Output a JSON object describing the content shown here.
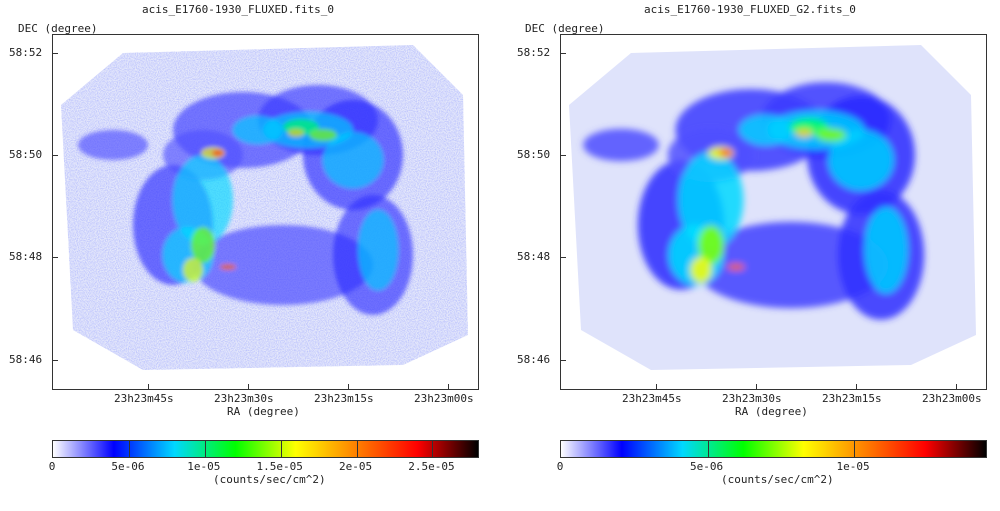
{
  "panels": [
    {
      "title": "acis_E1760-1930_FLUXED.fits_0",
      "ylabel": "DEC (degree)",
      "xlabel": "RA (degree)",
      "yticks": [
        "58:52",
        "58:50",
        "58:48",
        "58:46"
      ],
      "xticks": [
        "23h23m45s",
        "23h23m30s",
        "23h23m15s",
        "23h23m00s"
      ],
      "colorbar_ticks": [
        "0",
        "5e-06",
        "1e-05",
        "1.5e-05",
        "2e-05",
        "2.5e-05"
      ],
      "colorbar_unit": "(counts/sec/cm^2)",
      "colorbar_max": 2.8e-05,
      "style": "noisy"
    },
    {
      "title": "acis_E1760-1930_FLUXED_G2.fits_0",
      "ylabel": "DEC (degree)",
      "xlabel": "RA (degree)",
      "yticks": [
        "58:52",
        "58:50",
        "58:48",
        "58:46"
      ],
      "xticks": [
        "23h23m45s",
        "23h23m30s",
        "23h23m15s",
        "23h23m00s"
      ],
      "colorbar_ticks": [
        "0",
        "5e-06",
        "1e-05"
      ],
      "colorbar_unit": "(counts/sec/cm^2)",
      "colorbar_max": 1.45e-05,
      "style": "smooth"
    }
  ],
  "colormap": [
    "#ffffff",
    "#0000ff",
    "#00d8ff",
    "#00ff00",
    "#ffff00",
    "#ff8000",
    "#ff0000",
    "#000000"
  ]
}
